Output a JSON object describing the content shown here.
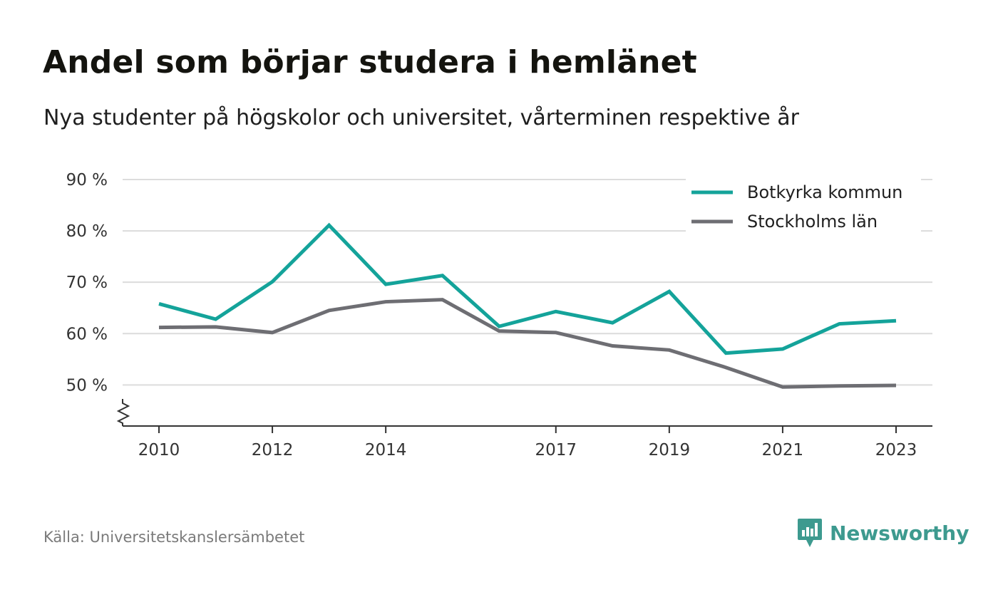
{
  "header": {
    "title": "Andel som börjar studera i hemlänet",
    "subtitle": "Nya studenter på högskolor och universitet, vårterminen respektive år"
  },
  "footer": {
    "source": "Källa: Universitetskanslersämbetet",
    "brand": "Newsworthy",
    "brand_icon": "newsworthy-logo-icon"
  },
  "colors": {
    "botkyrka": "#14a39a",
    "stockholm": "#6e6e73",
    "brand": "#3d9a8f"
  },
  "chart_data": {
    "type": "line",
    "title": "Andel som börjar studera i hemlänet",
    "subtitle": "Nya studenter på högskolor och universitet, vårterminen respektive år",
    "x": [
      2010,
      2011,
      2012,
      2013,
      2014,
      2015,
      2016,
      2017,
      2018,
      2019,
      2020,
      2021,
      2022,
      2023
    ],
    "x_tick_labels": [
      "2010",
      "2012",
      "2014",
      "2017",
      "2019",
      "2021",
      "2023"
    ],
    "y_tick_labels": [
      "50 %",
      "60 %",
      "70 %",
      "80 %",
      "90 %"
    ],
    "y_ticks": [
      50,
      60,
      70,
      80,
      90
    ],
    "ylim": [
      42,
      90
    ],
    "y_axis_break": true,
    "grid": true,
    "legend_position": "top-right",
    "series": [
      {
        "name": "Botkyrka kommun",
        "color": "#14a39a",
        "values": [
          65.8,
          62.8,
          70.1,
          81.1,
          69.6,
          71.3,
          61.4,
          64.3,
          62.1,
          68.2,
          56.2,
          57.0,
          61.9,
          62.5
        ]
      },
      {
        "name": "Stockholms län",
        "color": "#6e6e73",
        "values": [
          61.2,
          61.3,
          60.2,
          64.5,
          66.2,
          66.6,
          60.5,
          60.2,
          57.6,
          56.8,
          53.4,
          49.6,
          49.8,
          49.9
        ]
      }
    ]
  }
}
